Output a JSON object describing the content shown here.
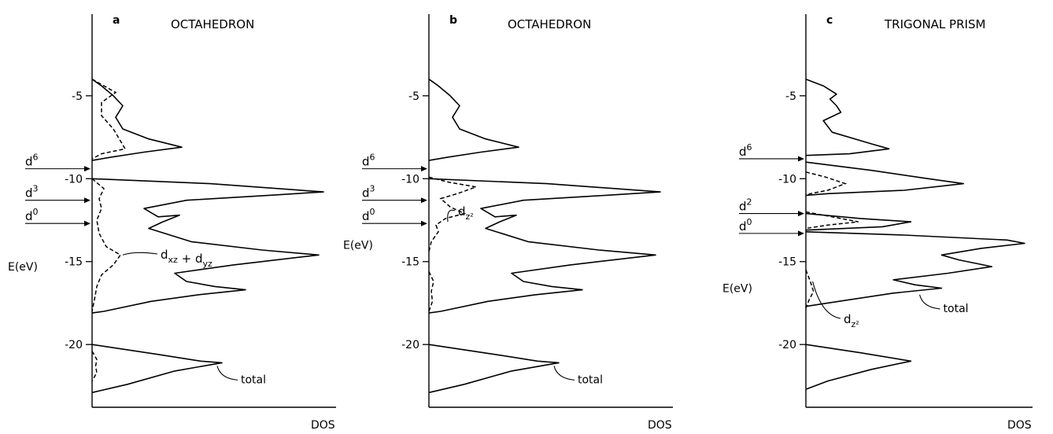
{
  "chart_data": [
    {
      "type": "line",
      "panel_letter": "a",
      "title": "OCTAHEDRON",
      "xlabel": "DOS",
      "ylabel": "E(eV)",
      "ylim": [
        -23.5,
        -1.5
      ],
      "yticks": [
        -5,
        -10,
        -15,
        -20
      ],
      "fill_levels": [
        {
          "label_base": "d",
          "label_sup": "6",
          "energy": -9.4
        },
        {
          "label_base": "d",
          "label_sup": "3",
          "energy": -11.3
        },
        {
          "label_base": "d",
          "label_sup": "0",
          "energy": -12.7
        }
      ],
      "series": [
        {
          "name": "total",
          "style": "solid",
          "segments": [
            [
              [
                0,
                -4.0
              ],
              [
                0.04,
                -4.4
              ],
              [
                0.09,
                -5.0
              ],
              [
                0.13,
                -5.6
              ],
              [
                0.1,
                -6.3
              ],
              [
                0.13,
                -7.0
              ],
              [
                0.24,
                -7.6
              ],
              [
                0.38,
                -8.1
              ],
              [
                0.22,
                -8.4
              ],
              [
                0.08,
                -8.7
              ],
              [
                0,
                -8.9
              ]
            ],
            [
              [
                0,
                -10.0
              ],
              [
                0.5,
                -10.3
              ],
              [
                0.98,
                -10.8
              ],
              [
                0.75,
                -11.0
              ],
              [
                0.4,
                -11.3
              ],
              [
                0.22,
                -11.8
              ],
              [
                0.28,
                -12.3
              ],
              [
                0.37,
                -12.2
              ],
              [
                0.3,
                -12.6
              ],
              [
                0.24,
                -13.0
              ],
              [
                0.42,
                -13.8
              ],
              [
                0.72,
                -14.3
              ],
              [
                0.96,
                -14.6
              ],
              [
                0.6,
                -15.2
              ],
              [
                0.35,
                -15.7
              ],
              [
                0.4,
                -16.2
              ],
              [
                0.52,
                -16.5
              ],
              [
                0.65,
                -16.7
              ],
              [
                0.45,
                -17.0
              ],
              [
                0.25,
                -17.4
              ],
              [
                0.05,
                -18.0
              ],
              [
                0,
                -18.1
              ]
            ],
            [
              [
                0,
                -20.0
              ],
              [
                0.28,
                -20.6
              ],
              [
                0.46,
                -21.0
              ],
              [
                0.55,
                -21.1
              ],
              [
                0.35,
                -21.6
              ],
              [
                0.15,
                -22.4
              ],
              [
                0,
                -22.9
              ]
            ]
          ]
        },
        {
          "name": "d_xz + d_yz",
          "style": "dashed",
          "segments": [
            [
              [
                0,
                -4.0
              ],
              [
                0.1,
                -4.8
              ],
              [
                0.04,
                -5.4
              ],
              [
                0.04,
                -6.2
              ],
              [
                0.09,
                -7.0
              ],
              [
                0.14,
                -8.2
              ],
              [
                0.04,
                -8.5
              ],
              [
                0,
                -8.8
              ]
            ],
            [
              [
                0,
                -10.0
              ],
              [
                0.05,
                -10.6
              ],
              [
                0.03,
                -11.2
              ],
              [
                0.04,
                -11.8
              ],
              [
                0.02,
                -12.5
              ],
              [
                0.03,
                -13.3
              ],
              [
                0.06,
                -14.1
              ],
              [
                0.12,
                -14.6
              ],
              [
                0.09,
                -15.2
              ],
              [
                0.04,
                -15.8
              ],
              [
                0.02,
                -16.5
              ],
              [
                0.01,
                -17.3
              ],
              [
                0,
                -18.0
              ]
            ],
            [
              [
                0,
                -20.4
              ],
              [
                0.02,
                -20.9
              ],
              [
                0.015,
                -21.3
              ],
              [
                0.02,
                -21.7
              ],
              [
                0,
                -22.2
              ]
            ]
          ]
        }
      ]
    },
    {
      "type": "line",
      "panel_letter": "b",
      "title": "OCTAHEDRON",
      "xlabel": "DOS",
      "ylabel": "E(eV)",
      "ylim": [
        -23.5,
        -1.5
      ],
      "yticks": [
        -5,
        -10,
        -15,
        -20
      ],
      "fill_levels": [
        {
          "label_base": "d",
          "label_sup": "6",
          "energy": -9.4
        },
        {
          "label_base": "d",
          "label_sup": "3",
          "energy": -11.3
        },
        {
          "label_base": "d",
          "label_sup": "0",
          "energy": -12.7
        }
      ],
      "series": [
        {
          "name": "total",
          "style": "solid",
          "segments": [
            [
              [
                0,
                -4.0
              ],
              [
                0.04,
                -4.4
              ],
              [
                0.09,
                -5.0
              ],
              [
                0.13,
                -5.6
              ],
              [
                0.1,
                -6.3
              ],
              [
                0.13,
                -7.0
              ],
              [
                0.24,
                -7.6
              ],
              [
                0.38,
                -8.1
              ],
              [
                0.22,
                -8.4
              ],
              [
                0.08,
                -8.7
              ],
              [
                0,
                -8.9
              ]
            ],
            [
              [
                0,
                -10.0
              ],
              [
                0.5,
                -10.3
              ],
              [
                0.98,
                -10.8
              ],
              [
                0.75,
                -11.0
              ],
              [
                0.4,
                -11.3
              ],
              [
                0.22,
                -11.8
              ],
              [
                0.28,
                -12.3
              ],
              [
                0.37,
                -12.2
              ],
              [
                0.3,
                -12.6
              ],
              [
                0.24,
                -13.0
              ],
              [
                0.42,
                -13.8
              ],
              [
                0.72,
                -14.3
              ],
              [
                0.96,
                -14.6
              ],
              [
                0.6,
                -15.2
              ],
              [
                0.35,
                -15.7
              ],
              [
                0.4,
                -16.2
              ],
              [
                0.52,
                -16.5
              ],
              [
                0.65,
                -16.7
              ],
              [
                0.45,
                -17.0
              ],
              [
                0.25,
                -17.4
              ],
              [
                0.05,
                -18.0
              ],
              [
                0,
                -18.1
              ]
            ],
            [
              [
                0,
                -20.0
              ],
              [
                0.28,
                -20.6
              ],
              [
                0.46,
                -21.0
              ],
              [
                0.55,
                -21.1
              ],
              [
                0.35,
                -21.6
              ],
              [
                0.15,
                -22.4
              ],
              [
                0,
                -22.9
              ]
            ]
          ]
        },
        {
          "name": "d_z²",
          "style": "dashed",
          "segments": [
            [
              [
                0,
                -9.9
              ],
              [
                0.08,
                -10.2
              ],
              [
                0.2,
                -10.5
              ],
              [
                0.12,
                -10.9
              ],
              [
                0.05,
                -11.2
              ],
              [
                0.09,
                -11.7
              ],
              [
                0.15,
                -12.1
              ],
              [
                0.07,
                -12.4
              ],
              [
                0.03,
                -12.8
              ],
              [
                0.04,
                -13.2
              ],
              [
                0.01,
                -13.8
              ],
              [
                0,
                -14.4
              ]
            ],
            [
              [
                0,
                -15.6
              ],
              [
                0.02,
                -16.2
              ],
              [
                0.01,
                -16.8
              ],
              [
                0.015,
                -17.4
              ],
              [
                0,
                -18.0
              ]
            ]
          ]
        }
      ]
    },
    {
      "type": "line",
      "panel_letter": "c",
      "title": "TRIGONAL PRISM",
      "xlabel": "DOS",
      "ylabel": "E(eV)",
      "ylim": [
        -23.5,
        -1.5
      ],
      "yticks": [
        -5,
        -10,
        -15,
        -20
      ],
      "fill_levels": [
        {
          "label_base": "d",
          "label_sup": "6",
          "energy": -8.8
        },
        {
          "label_base": "d",
          "label_sup": "2",
          "energy": -12.1
        },
        {
          "label_base": "d",
          "label_sup": "0",
          "energy": -13.3
        }
      ],
      "series": [
        {
          "name": "total",
          "style": "solid",
          "segments": [
            [
              [
                0,
                -4.0
              ],
              [
                0.08,
                -4.4
              ],
              [
                0.14,
                -4.9
              ],
              [
                0.11,
                -5.2
              ],
              [
                0.14,
                -5.6
              ],
              [
                0.16,
                -6.0
              ],
              [
                0.08,
                -6.5
              ],
              [
                0.12,
                -7.2
              ],
              [
                0.3,
                -7.9
              ],
              [
                0.38,
                -8.2
              ],
              [
                0.2,
                -8.5
              ],
              [
                0,
                -8.6
              ]
            ],
            [
              [
                0,
                -9.0
              ],
              [
                0.3,
                -9.5
              ],
              [
                0.56,
                -10.0
              ],
              [
                0.72,
                -10.3
              ],
              [
                0.45,
                -10.7
              ],
              [
                0.1,
                -10.9
              ],
              [
                0,
                -11.0
              ]
            ],
            [
              [
                0,
                -12.1
              ],
              [
                0.25,
                -12.4
              ],
              [
                0.48,
                -12.6
              ],
              [
                0.35,
                -12.9
              ],
              [
                0,
                -13.1
              ]
            ],
            [
              [
                0,
                -13.2
              ],
              [
                0.45,
                -13.4
              ],
              [
                0.92,
                -13.7
              ],
              [
                1.0,
                -13.9
              ],
              [
                0.8,
                -14.2
              ],
              [
                0.62,
                -14.6
              ],
              [
                0.7,
                -14.9
              ],
              [
                0.85,
                -15.3
              ],
              [
                0.65,
                -15.7
              ],
              [
                0.4,
                -16.1
              ],
              [
                0.5,
                -16.4
              ],
              [
                0.62,
                -16.6
              ],
              [
                0.4,
                -16.9
              ],
              [
                0.15,
                -17.4
              ],
              [
                0,
                -17.7
              ]
            ],
            [
              [
                0,
                -20.0
              ],
              [
                0.25,
                -20.5
              ],
              [
                0.48,
                -21.0
              ],
              [
                0.3,
                -21.5
              ],
              [
                0.1,
                -22.2
              ],
              [
                0,
                -22.7
              ]
            ]
          ]
        },
        {
          "name": "d_z²",
          "style": "dashed",
          "segments": [
            [
              [
                0,
                -9.6
              ],
              [
                0.09,
                -9.9
              ],
              [
                0.18,
                -10.3
              ],
              [
                0.1,
                -10.7
              ],
              [
                0.02,
                -10.9
              ],
              [
                0,
                -11.0
              ]
            ],
            [
              [
                0,
                -12.0
              ],
              [
                0.12,
                -12.3
              ],
              [
                0.24,
                -12.6
              ],
              [
                0.1,
                -12.8
              ],
              [
                0,
                -13.0
              ]
            ],
            [
              [
                0,
                -15.5
              ],
              [
                0.02,
                -16.2
              ],
              [
                0.035,
                -16.8
              ],
              [
                0.015,
                -17.3
              ],
              [
                0,
                -17.8
              ]
            ]
          ]
        }
      ]
    }
  ]
}
